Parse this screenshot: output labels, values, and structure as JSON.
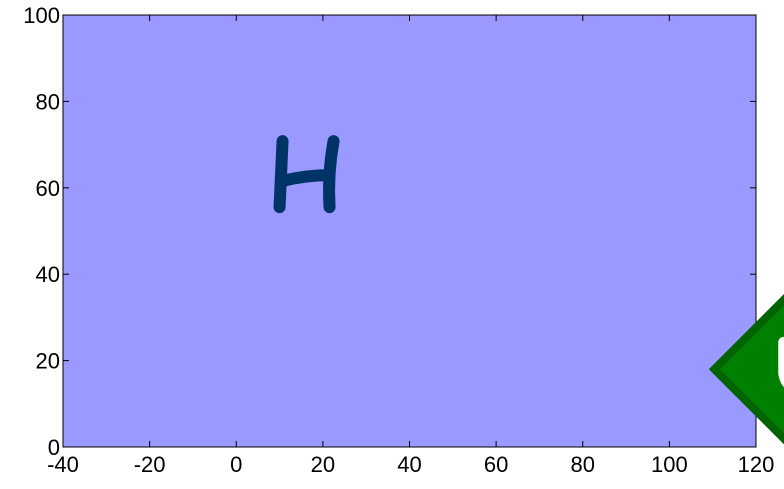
{
  "colors": {
    "background": "#ffffff",
    "plot_area": "#9999ff",
    "axis": "#000000",
    "sprite_h": "#003366",
    "token_fill": "#008000",
    "token_border": "#006400",
    "token_glyph": "#ffffff"
  },
  "chart_data": {
    "type": "scatter",
    "title": "",
    "xlabel": "",
    "ylabel": "",
    "xlim": [
      -40,
      120
    ],
    "ylim": [
      0,
      100
    ],
    "x_ticks": [
      -40,
      -20,
      0,
      20,
      40,
      60,
      80,
      100,
      120
    ],
    "y_ticks": [
      0,
      20,
      40,
      60,
      80,
      100
    ],
    "grid": false
  },
  "sprites": [
    {
      "id": "h-glyph",
      "glyph": "H",
      "x": 16,
      "y": 62
    },
    {
      "id": "green-diamond-token",
      "glyph": "D",
      "x": 130,
      "y": 18,
      "rotation_deg": 45
    }
  ]
}
